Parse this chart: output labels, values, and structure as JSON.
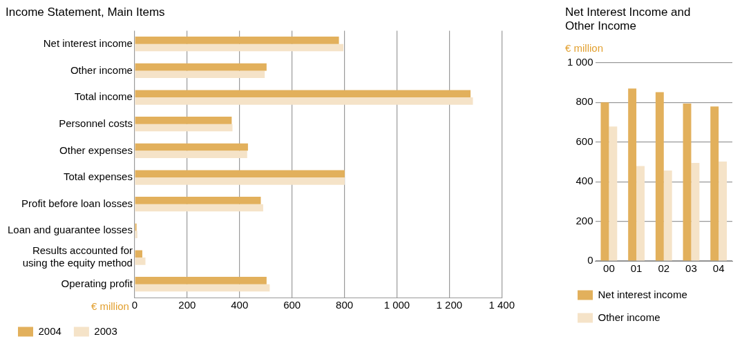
{
  "chart_data": [
    {
      "type": "bar",
      "orientation": "horizontal",
      "title": "Income Statement, Main Items",
      "xlabel": "€ million",
      "categories": [
        "Net interest income",
        "Other income",
        "Total income",
        "Personnel costs",
        "Other expenses",
        "Total expenses",
        "Profit before loan losses",
        "Loan and guarantee losses",
        "Results accounted for using the equity method",
        "Operating profit"
      ],
      "series": [
        {
          "name": "2004",
          "color": "#e2b05c",
          "values": [
            779,
            503,
            1281,
            370,
            432,
            801,
            481,
            7,
            29,
            503
          ]
        },
        {
          "name": "2003",
          "color": "#f5e3c8",
          "values": [
            796,
            496,
            1290,
            373,
            429,
            801,
            490,
            10,
            41,
            515
          ]
        }
      ],
      "xlim": [
        0,
        1400
      ],
      "xticks": [
        0,
        200,
        400,
        600,
        800,
        {
          "value": 1000,
          "label": "1 000"
        },
        {
          "value": 1200,
          "label": "1 200"
        },
        {
          "value": 1400,
          "label": "1 400"
        }
      ],
      "grid": "x",
      "legend": "bottom"
    },
    {
      "type": "bar",
      "title": "Net Interest Income and Other Income",
      "ylabel": "€ million",
      "categories": [
        "00",
        "01",
        "02",
        "03",
        "04"
      ],
      "series": [
        {
          "name": "Net interest income",
          "color": "#e2b05c",
          "values": [
            800,
            870,
            851,
            794,
            779
          ]
        },
        {
          "name": "Other income",
          "color": "#f5e3c8",
          "values": [
            678,
            479,
            456,
            494,
            501
          ]
        }
      ],
      "ylim": [
        0,
        1000
      ],
      "yticks": [
        0,
        200,
        400,
        600,
        800,
        {
          "value": 1000,
          "label": "1 000"
        }
      ],
      "grid": "y",
      "legend": "bottom"
    }
  ]
}
